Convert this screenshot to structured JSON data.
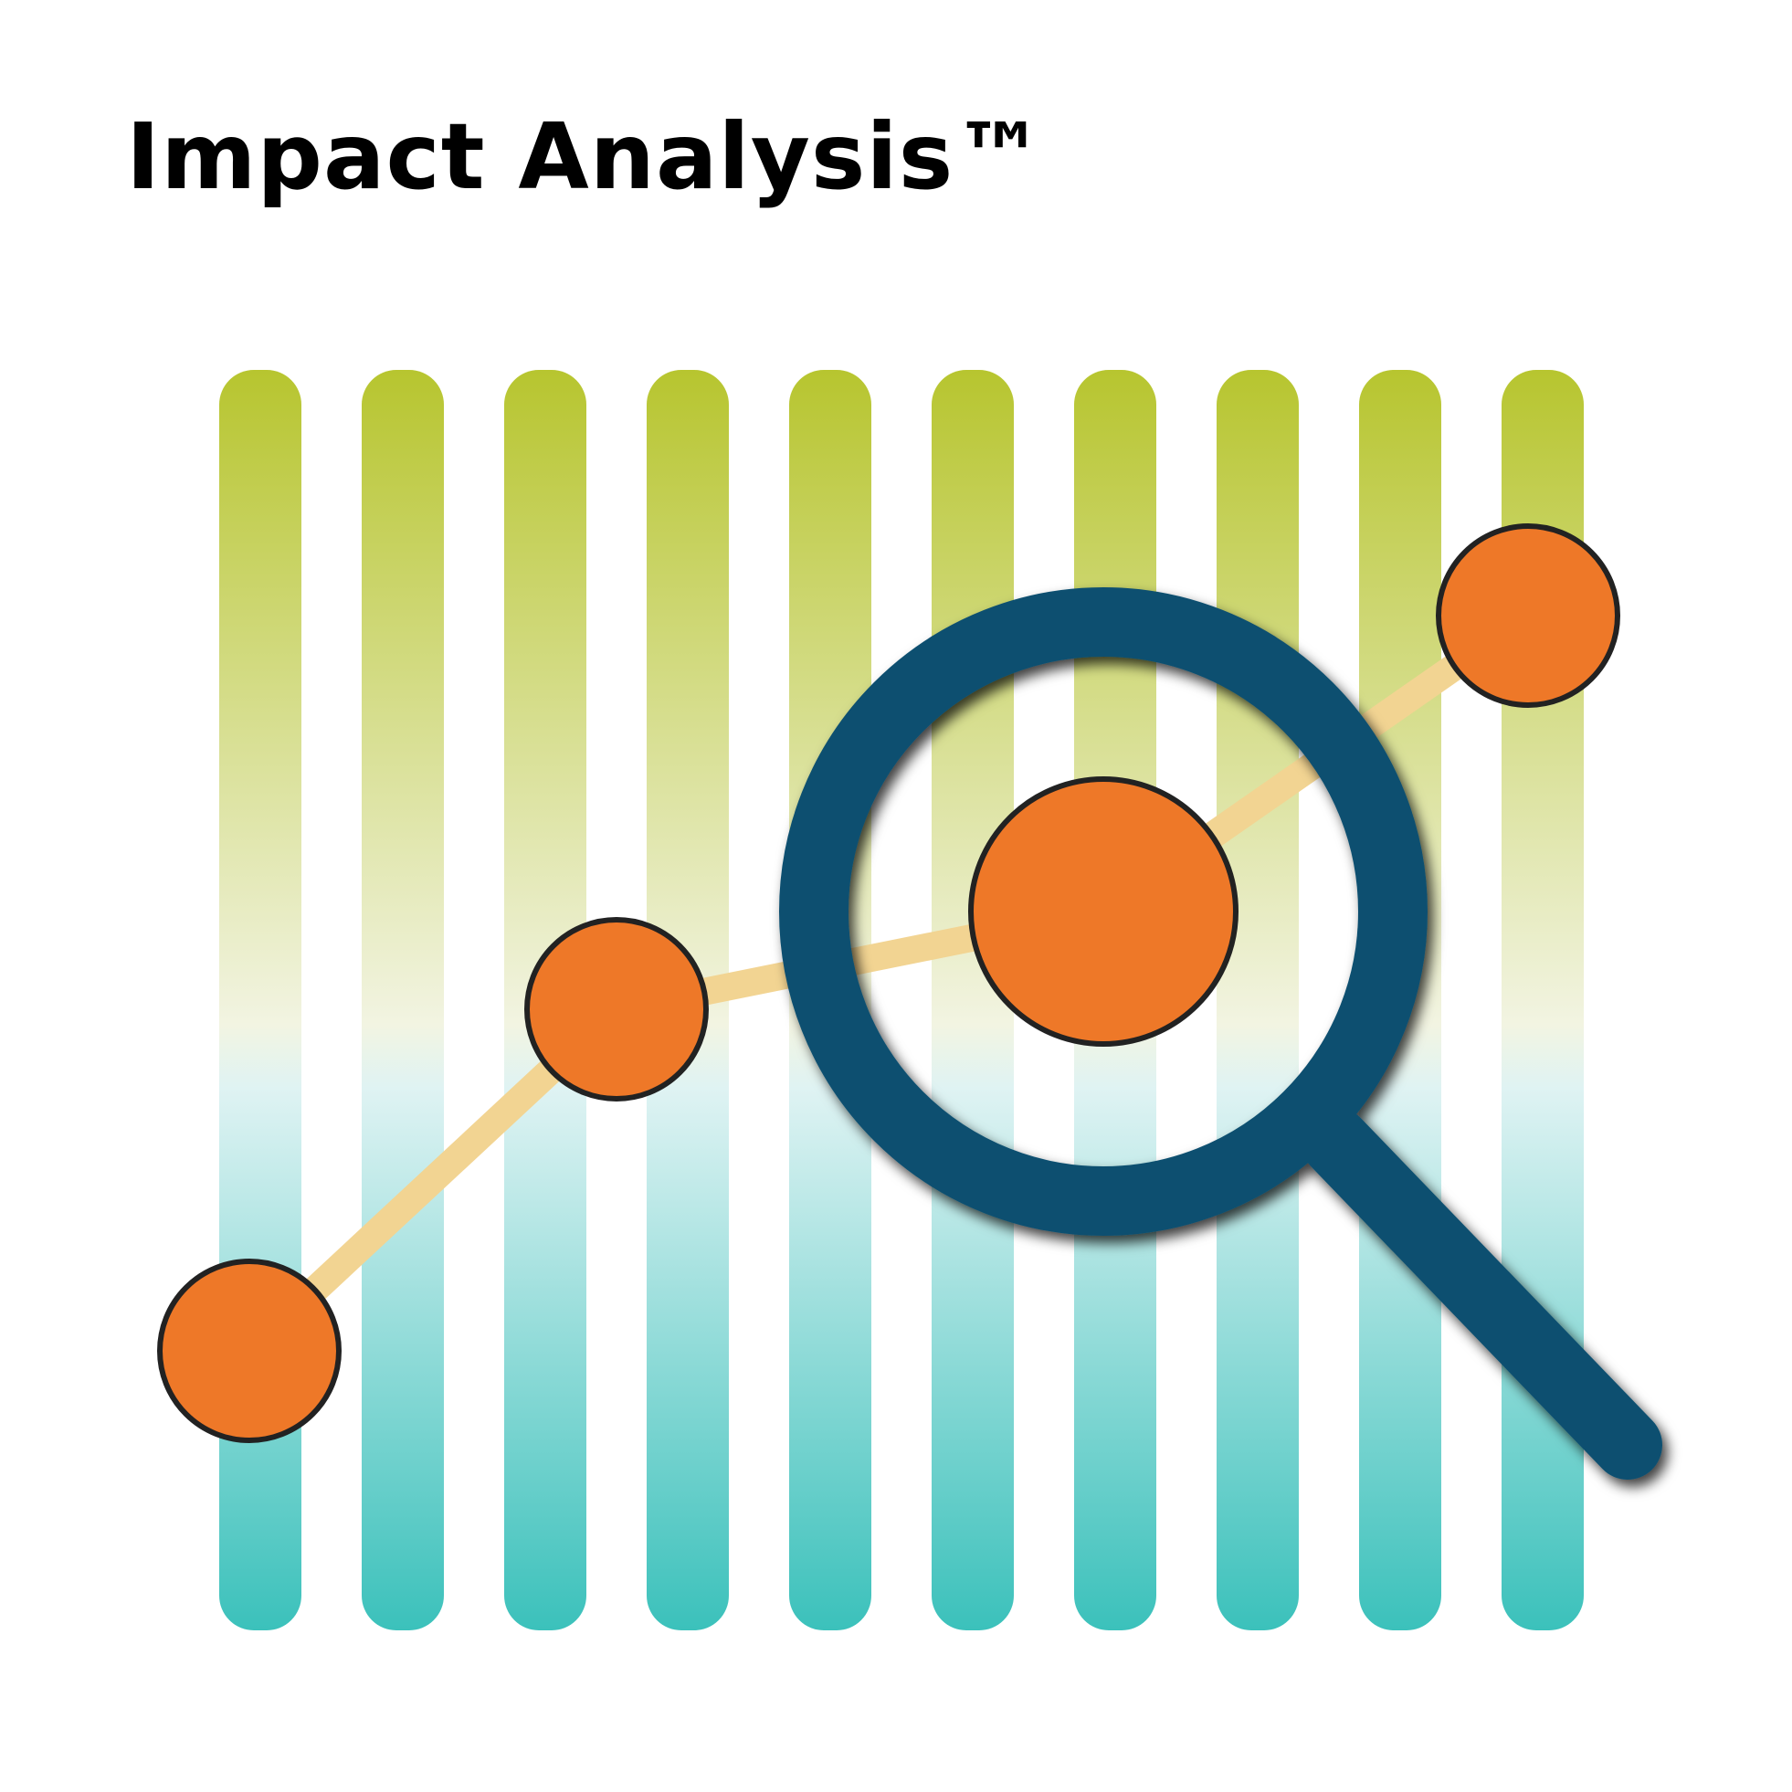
{
  "title": "Impact Analysis™",
  "illustration": {
    "bar_count": 10,
    "bar_gradient": {
      "top": "#b7c52f",
      "middle": "#f2f4e2",
      "lower": "#dff3f3",
      "bottom": "#3bc1bb"
    },
    "line_color": "#f2d492",
    "point_color": "#ee7828",
    "point_outline": "#222222",
    "magnifier_color": "#0e5070",
    "icon": "magnifying-glass-icon"
  }
}
